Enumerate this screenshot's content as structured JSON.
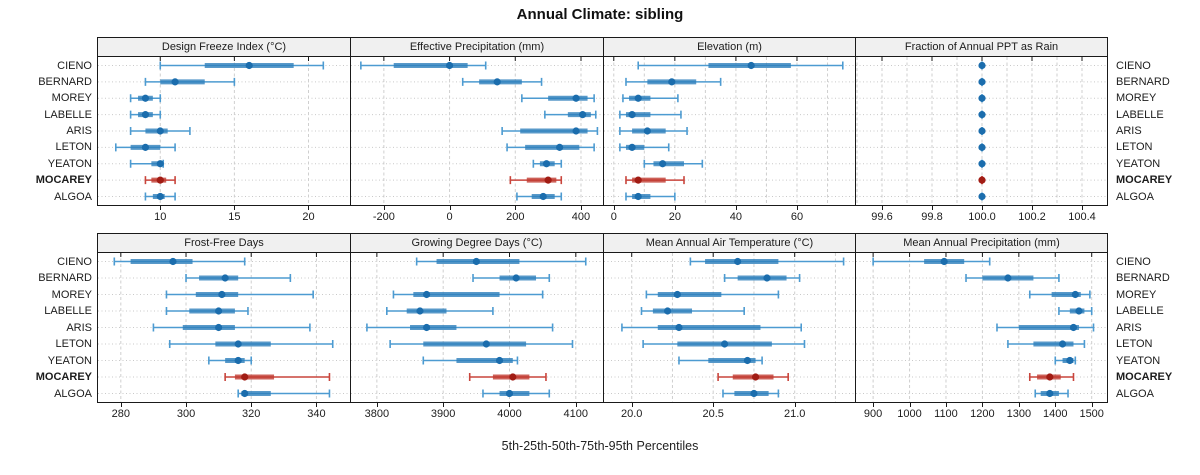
{
  "title": "Annual Climate: sibling",
  "footer": "5th-25th-50th-75th-95th Percentiles",
  "sites": [
    "CIENO",
    "BERNARD",
    "MOREY",
    "LABELLE",
    "ARIS",
    "LETON",
    "YEATON",
    "MOCAREY",
    "ALGOA"
  ],
  "highlight_site": "MOCAREY",
  "colors": {
    "normal_line": "#4D9BD1",
    "normal_bar": "#2E80BC",
    "normal_dot": "#1B6DAD",
    "highlight_line": "#C9453C",
    "highlight_bar": "#C03A30",
    "highlight_dot": "#A11C14",
    "strip_bg": "#F0F0F0",
    "panel_border": "#1A1A1A",
    "grid": "#CFCFCF",
    "row_guide": "#C9C9C9",
    "text": "#1C1C1C"
  },
  "chart_data": {
    "type": "trellis-percentile-dotplot",
    "percentile_levels": [
      5,
      25,
      50,
      75,
      95
    ],
    "layout": {
      "rows": 2,
      "cols": 4,
      "grid_on": true,
      "row_labels_both_sides": true
    },
    "panels": [
      {
        "title": "Design Freeze Index (°C)",
        "domain": [
          5.8,
          22.8
        ],
        "ticks": [
          {
            "v": 10,
            "label": "10"
          },
          {
            "v": 15,
            "label": "15"
          },
          {
            "v": 20,
            "label": "20"
          }
        ],
        "grid": [
          10,
          15,
          20
        ],
        "values": [
          [
            10,
            13,
            16,
            19,
            21
          ],
          [
            9,
            10,
            11,
            13,
            15
          ],
          [
            8,
            8.5,
            9,
            9.5,
            10
          ],
          [
            8,
            8.5,
            9,
            9.5,
            10
          ],
          [
            8,
            9,
            10,
            10.5,
            12
          ],
          [
            7,
            8,
            9,
            10,
            11
          ],
          [
            8,
            9.4,
            10,
            10,
            10.2
          ],
          [
            9,
            9.4,
            10,
            10.4,
            11
          ],
          [
            9,
            9.5,
            10,
            10.3,
            11
          ]
        ]
      },
      {
        "title": "Effective Precipitation (mm)",
        "domain": [
          -300,
          467
        ],
        "ticks": [
          {
            "v": -200,
            "label": "-200"
          },
          {
            "v": 0,
            "label": "0"
          },
          {
            "v": 200,
            "label": "200"
          },
          {
            "v": 400,
            "label": "400"
          }
        ],
        "grid": [
          -200,
          0,
          200,
          400
        ],
        "values": [
          [
            -270,
            -170,
            0,
            55,
            110
          ],
          [
            40,
            90,
            145,
            220,
            280
          ],
          [
            220,
            300,
            385,
            420,
            440
          ],
          [
            290,
            360,
            405,
            430,
            445
          ],
          [
            160,
            215,
            385,
            420,
            450
          ],
          [
            175,
            230,
            335,
            395,
            440
          ],
          [
            255,
            275,
            295,
            320,
            340
          ],
          [
            185,
            235,
            300,
            325,
            340
          ],
          [
            205,
            250,
            285,
            320,
            340
          ]
        ]
      },
      {
        "title": "Elevation (m)",
        "domain": [
          -3.2,
          79
        ],
        "ticks": [
          {
            "v": 0,
            "label": "0"
          },
          {
            "v": 20,
            "label": "20"
          },
          {
            "v": 40,
            "label": "40"
          },
          {
            "v": 60,
            "label": "60"
          }
        ],
        "grid": [
          0,
          10,
          20,
          30,
          40,
          50,
          60,
          70
        ],
        "values": [
          [
            8,
            31,
            45,
            58,
            75
          ],
          [
            4,
            11,
            19,
            27,
            35
          ],
          [
            3,
            5,
            8,
            12,
            21
          ],
          [
            2,
            4,
            6,
            12,
            22
          ],
          [
            2,
            6,
            11,
            17,
            24
          ],
          [
            2,
            4,
            6,
            10,
            18
          ],
          [
            10,
            13,
            16,
            23,
            29
          ],
          [
            4,
            6,
            8,
            17,
            23
          ],
          [
            4,
            6,
            8,
            12,
            20
          ]
        ]
      },
      {
        "title": "Fraction of Annual PPT as Rain",
        "domain": [
          99.496,
          100.5
        ],
        "ticks": [
          {
            "v": 99.6,
            "label": "99.6"
          },
          {
            "v": 99.8,
            "label": "99.8"
          },
          {
            "v": 100.0,
            "label": "100.0"
          },
          {
            "v": 100.2,
            "label": "100.2"
          },
          {
            "v": 100.4,
            "label": "100.4"
          }
        ],
        "grid": [
          99.5,
          99.6,
          99.7,
          99.8,
          99.9,
          100.0,
          100.1,
          100.2,
          100.3,
          100.4
        ],
        "values": [
          [
            100,
            100,
            100,
            100,
            100
          ],
          [
            100,
            100,
            100,
            100,
            100
          ],
          [
            100,
            100,
            100,
            100,
            100
          ],
          [
            100,
            100,
            100,
            100,
            100
          ],
          [
            100,
            100,
            100,
            100,
            100
          ],
          [
            100,
            100,
            100,
            100,
            100
          ],
          [
            100,
            100,
            100,
            100,
            100
          ],
          [
            100,
            100,
            100,
            100,
            100
          ],
          [
            100,
            100,
            100,
            100,
            100
          ]
        ]
      },
      {
        "title": "Frost-Free Days",
        "domain": [
          273,
          350.3
        ],
        "ticks": [
          {
            "v": 280,
            "label": "280"
          },
          {
            "v": 300,
            "label": "300"
          },
          {
            "v": 320,
            "label": "320"
          },
          {
            "v": 340,
            "label": "340"
          }
        ],
        "grid": [
          280,
          300,
          320,
          340
        ],
        "values": [
          [
            278,
            283,
            296,
            302,
            318
          ],
          [
            300,
            304,
            312,
            316,
            332
          ],
          [
            294,
            303,
            311,
            316,
            339
          ],
          [
            294,
            301,
            310,
            315,
            319
          ],
          [
            290,
            299,
            310,
            315,
            338
          ],
          [
            295,
            309,
            316,
            326,
            345
          ],
          [
            307,
            312,
            316,
            318,
            320
          ],
          [
            312,
            315,
            318,
            327,
            344
          ],
          [
            316,
            317,
            318,
            326,
            344
          ]
        ]
      },
      {
        "title": "Growing Degree Days (°C)",
        "domain": [
          3761,
          4141
        ],
        "ticks": [
          {
            "v": 3800,
            "label": "3800"
          },
          {
            "v": 3900,
            "label": "3900"
          },
          {
            "v": 4000,
            "label": "4000"
          },
          {
            "v": 4100,
            "label": "4100"
          }
        ],
        "grid": [
          3800,
          3900,
          4000,
          4100
        ],
        "values": [
          [
            3860,
            3890,
            3950,
            4015,
            4115
          ],
          [
            3945,
            3985,
            4010,
            4040,
            4060
          ],
          [
            3825,
            3855,
            3875,
            3985,
            4050
          ],
          [
            3815,
            3845,
            3865,
            3905,
            3975
          ],
          [
            3785,
            3850,
            3875,
            3920,
            4065
          ],
          [
            3820,
            3870,
            3965,
            4025,
            4095
          ],
          [
            3870,
            3920,
            3985,
            4005,
            4012
          ],
          [
            3940,
            3975,
            4005,
            4030,
            4055
          ],
          [
            3960,
            3985,
            4000,
            4030,
            4060
          ]
        ]
      },
      {
        "title": "Mean Annual Air Temperature (°C)",
        "domain": [
          19.83,
          21.37
        ],
        "ticks": [
          {
            "v": 20.0,
            "label": "20.0"
          },
          {
            "v": 20.5,
            "label": "20.5"
          },
          {
            "v": 21.0,
            "label": "21.0"
          }
        ],
        "grid": [
          20.0,
          20.25,
          20.5,
          20.75,
          21.0,
          21.25
        ],
        "values": [
          [
            20.36,
            20.45,
            20.65,
            20.9,
            21.3
          ],
          [
            20.57,
            20.65,
            20.83,
            20.95,
            21.03
          ],
          [
            20.09,
            20.16,
            20.28,
            20.55,
            20.9
          ],
          [
            20.06,
            20.13,
            20.22,
            20.37,
            20.69
          ],
          [
            19.94,
            20.16,
            20.29,
            20.79,
            21.04
          ],
          [
            20.07,
            20.28,
            20.57,
            20.86,
            21.06
          ],
          [
            20.29,
            20.47,
            20.71,
            20.76,
            20.8
          ],
          [
            20.53,
            20.62,
            20.76,
            20.87,
            20.96
          ],
          [
            20.56,
            20.63,
            20.75,
            20.84,
            20.9
          ]
        ]
      },
      {
        "title": "Mean Annual Precipitation (mm)",
        "domain": [
          853,
          1542
        ],
        "ticks": [
          {
            "v": 900,
            "label": "900"
          },
          {
            "v": 1000,
            "label": "1000"
          },
          {
            "v": 1100,
            "label": "1100"
          },
          {
            "v": 1200,
            "label": "1200"
          },
          {
            "v": 1300,
            "label": "1300"
          },
          {
            "v": 1400,
            "label": "1400"
          },
          {
            "v": 1500,
            "label": "1500"
          }
        ],
        "grid": [
          900,
          1000,
          1100,
          1200,
          1300,
          1400,
          1500
        ],
        "values": [
          [
            900,
            1040,
            1095,
            1150,
            1220
          ],
          [
            1155,
            1200,
            1270,
            1340,
            1410
          ],
          [
            1330,
            1390,
            1455,
            1470,
            1495
          ],
          [
            1410,
            1440,
            1465,
            1480,
            1500
          ],
          [
            1240,
            1300,
            1450,
            1465,
            1505
          ],
          [
            1270,
            1340,
            1420,
            1450,
            1480
          ],
          [
            1400,
            1420,
            1440,
            1450,
            1455
          ],
          [
            1330,
            1350,
            1385,
            1415,
            1450
          ],
          [
            1345,
            1360,
            1385,
            1410,
            1435
          ]
        ]
      }
    ]
  }
}
